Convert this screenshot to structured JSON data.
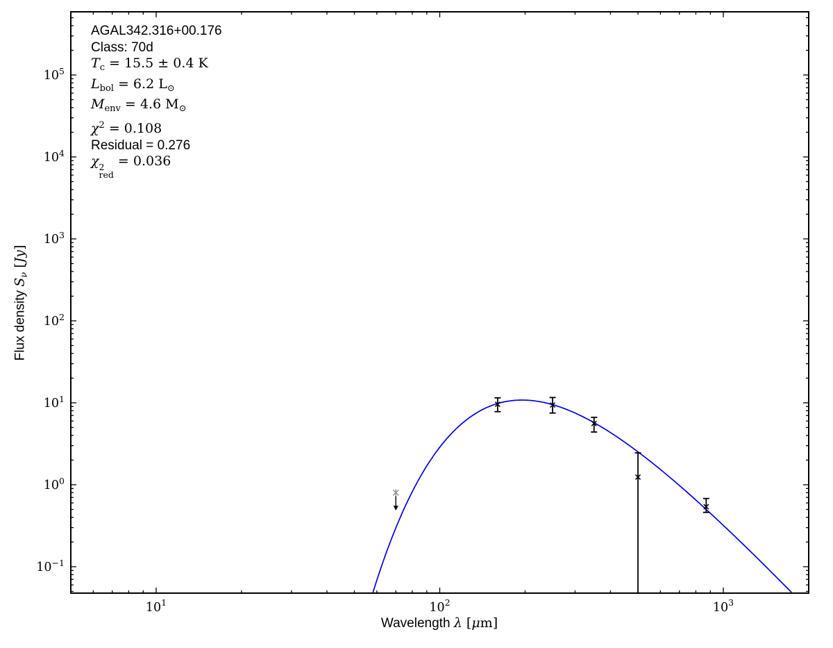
{
  "figure": {
    "background": "#ffffff",
    "annotation": {
      "source": "AGAL342.316+00.176",
      "class_line": "Class: 70d",
      "tc": {
        "sym": "T",
        "sub": "c",
        "rest": " = 15.5 ± 0.4 K"
      },
      "lbol": {
        "sym": "L",
        "sub": "bol",
        "rest": " = 6.2 L",
        "unit_sub": "⊙"
      },
      "menv": {
        "sym": "M",
        "sub": "env",
        "rest": " = 4.6 M",
        "unit_sub": "⊙"
      },
      "chi2": {
        "sym": "χ",
        "sup": "2",
        "rest": " = 0.108"
      },
      "residual": "Residual = 0.276",
      "chi2red": {
        "sym": "χ",
        "sup": "2",
        "sub": "red",
        "rest": " = 0.036"
      }
    }
  },
  "chart_data": {
    "type": "line",
    "title": "",
    "x_axis": {
      "label_text": "Wavelength",
      "label_math": "λ",
      "unit_open": " [",
      "unit_mu": "μ",
      "unit_rest": "m]",
      "scale": "log",
      "lim": [
        5,
        2000
      ],
      "major_ticks": [
        10,
        100,
        1000
      ],
      "major_tick_labels": [
        "10^1",
        "10^2",
        "10^3"
      ],
      "grid": false
    },
    "y_axis": {
      "label_text": "Flux density",
      "label_math": "S",
      "label_math_sub": "ν",
      "unit_open": " [",
      "unit_italic": "Jy",
      "unit_close": "]",
      "scale": "log",
      "lim": [
        0.0476,
        590000
      ],
      "major_ticks": [
        0.1,
        1,
        10,
        100,
        1000,
        10000,
        100000
      ],
      "major_tick_labels": [
        "10^-1",
        "10^0",
        "10^1",
        "10^2",
        "10^3",
        "10^4",
        "10^5"
      ],
      "grid": false
    },
    "fit_curve": {
      "name": "greybody-fit-curve",
      "model": "modified blackbody",
      "color": "#0000ee",
      "T_K": 15.5,
      "beta": 1.8,
      "peak_wavelength_um": 195,
      "peak_flux_Jy": 10.8
    },
    "data_points": [
      {
        "wavelength_um": 70,
        "flux_Jy": 0.8,
        "upper_limit": true,
        "arrow_tip_Jy": 0.6,
        "marker": "asterisk",
        "color": "#909090"
      },
      {
        "wavelength_um": 160,
        "flux_Jy": 9.6,
        "flux_hi_Jy": 11.5,
        "flux_lo_Jy": 7.8,
        "marker": "x",
        "color": "#000000"
      },
      {
        "wavelength_um": 250,
        "flux_Jy": 9.4,
        "flux_hi_Jy": 11.6,
        "flux_lo_Jy": 7.5,
        "marker": "x",
        "color": "#000000"
      },
      {
        "wavelength_um": 350,
        "flux_Jy": 5.6,
        "flux_hi_Jy": 6.65,
        "flux_lo_Jy": 4.4,
        "marker": "x",
        "color": "#000000"
      },
      {
        "wavelength_um": 500,
        "flux_Jy": 1.24,
        "flux_hi_Jy": 2.45,
        "flux_lo_Jy": null,
        "marker": "x",
        "color": "#000000"
      },
      {
        "wavelength_um": 870,
        "flux_Jy": 0.54,
        "flux_hi_Jy": 0.68,
        "flux_lo_Jy": 0.46,
        "marker": "x",
        "color": "#000000"
      }
    ]
  }
}
